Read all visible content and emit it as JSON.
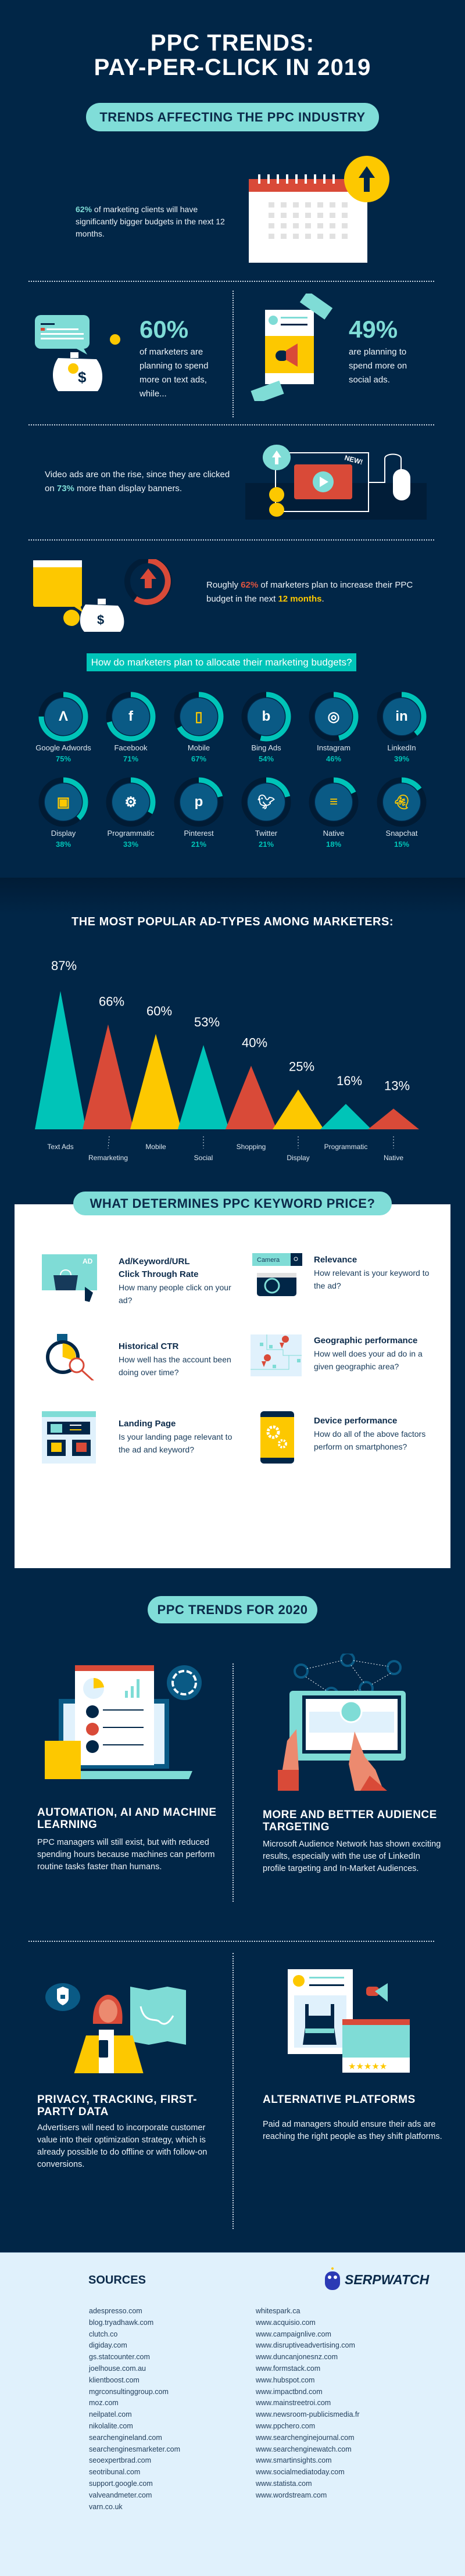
{
  "header": {
    "title_line1": "PPC TRENDS:",
    "title_line2": "PAY-PER-CLICK IN 2019"
  },
  "section1": {
    "pill": "TRENDS AFFECTING THE PPC INDUSTRY",
    "stat1": {
      "highlight": "62%",
      "text": " of marketing clients will have significantly bigger budgets in the next 12 months."
    },
    "stat2": {
      "value": "60%",
      "text": "of marketers are planning to spend more on text ads, while..."
    },
    "stat3": {
      "value": "49%",
      "text": "are planning to spend more on social ads."
    },
    "stat4": {
      "prefix": "Video ads are on the rise, since they are clicked on ",
      "highlight": "73%",
      "suffix": " more than display banners.",
      "badge": "NEW!"
    },
    "stat5": {
      "prefix": "Roughly ",
      "highlight": "62%",
      "middle": " of marketers plan to increase their PPC budget in the next ",
      "highlight2": "12 months",
      "suffix": "."
    }
  },
  "budgets": {
    "question": "How do marketers plan to allocate their marketing budgets?",
    "items": [
      {
        "label": "Google Adwords",
        "pct": "75%",
        "value": 75,
        "icon": "google-adwords-icon"
      },
      {
        "label": "Facebook",
        "pct": "71%",
        "value": 71,
        "icon": "facebook-icon"
      },
      {
        "label": "Mobile",
        "pct": "67%",
        "value": 67,
        "icon": "mobile-phone-icon"
      },
      {
        "label": "Bing Ads",
        "pct": "54%",
        "value": 54,
        "icon": "bing-icon"
      },
      {
        "label": "Instagram",
        "pct": "46%",
        "value": 46,
        "icon": "instagram-icon"
      },
      {
        "label": "LinkedIn",
        "pct": "39%",
        "value": 39,
        "icon": "linkedin-icon"
      },
      {
        "label": "Display",
        "pct": "38%",
        "value": 38,
        "icon": "display-icon"
      },
      {
        "label": "Programmatic",
        "pct": "33%",
        "value": 33,
        "icon": "gear-icon"
      },
      {
        "label": "Pinterest",
        "pct": "21%",
        "value": 21,
        "icon": "pinterest-icon"
      },
      {
        "label": "Twitter",
        "pct": "21%",
        "value": 21,
        "icon": "twitter-icon"
      },
      {
        "label": "Native",
        "pct": "18%",
        "value": 18,
        "icon": "native-ad-icon"
      },
      {
        "label": "Snapchat",
        "pct": "15%",
        "value": 15,
        "icon": "snapchat-icon"
      }
    ]
  },
  "chart_data": {
    "type": "bar",
    "title": "THE MOST POPULAR AD-TYPES AMONG MARKETERS:",
    "categories": [
      "Text Ads",
      "Remarketing",
      "Mobile",
      "Social",
      "Shopping",
      "Display",
      "Programmatic",
      "Native"
    ],
    "values": [
      87,
      66,
      60,
      53,
      40,
      25,
      16,
      13
    ],
    "labels": [
      "87%",
      "66%",
      "60%",
      "53%",
      "40%",
      "25%",
      "16%",
      "13%"
    ],
    "ylim": [
      0,
      87
    ],
    "grid": false,
    "colors": [
      "#00c4b8",
      "#d94a38",
      "#fdc800",
      "#00c4b8",
      "#d94a38",
      "#fdc800",
      "#00c4b8",
      "#d94a38"
    ]
  },
  "keyword": {
    "pill": "WHAT DETERMINES PPC KEYWORD PRICE?",
    "items": [
      {
        "title1": "Ad/Keyword/URL",
        "title2": "Click Through Rate",
        "desc": "How many people click on your ad?",
        "icon_text": "AD"
      },
      {
        "title1": "Relevance",
        "desc": "How relevant is your keyword to the ad?",
        "icon_text": "Camera"
      },
      {
        "title1": "Historical CTR",
        "desc": "How well has the account been doing over time?"
      },
      {
        "title1": "Geographic performance",
        "desc": "How well does your ad do in a given geographic area?"
      },
      {
        "title1": "Landing Page",
        "desc": "Is your landing page relevant to the ad and keyword?"
      },
      {
        "title1": "Device performance",
        "desc": "How do all of the above factors perform on smartphones?"
      }
    ]
  },
  "trends2020": {
    "pill": "PPC TRENDS FOR 2020",
    "items": [
      {
        "title": "AUTOMATION, AI AND MACHINE LEARNING",
        "desc": "PPC managers will still exist, but with reduced spending hours because machines can perform routine tasks faster than humans."
      },
      {
        "title": "MORE AND BETTER AUDIENCE TARGETING",
        "desc": "Microsoft Audience Network has shown exciting results, especially with the use of LinkedIn profile targeting and In-Market Audiences."
      },
      {
        "title": "PRIVACY, TRACKING, FIRST-PARTY DATA",
        "desc": "Advertisers will need to incorporate customer value into their optimization strategy, which is already possible to do offline or with follow-on conversions."
      },
      {
        "title": "ALTERNATIVE PLATFORMS",
        "desc": "Paid ad managers should ensure their ads are reaching the right people as they shift platforms."
      }
    ]
  },
  "sources": {
    "title": "SOURCES",
    "logo": "SERPWATCH",
    "left": [
      "adespresso.com",
      "blog.tryadhawk.com",
      "clutch.co",
      "digiday.com",
      "gs.statcounter.com",
      "joelhouse.com.au",
      "klientboost.com",
      "mgrconsultinggroup.com",
      "moz.com",
      "neilpatel.com",
      "nikolalite.com",
      "searchengineland.com",
      "searchenginesmarketer.com",
      "seoexpertbrad.com",
      "seotribunal.com",
      "support.google.com",
      "valveandmeter.com",
      "varn.co.uk"
    ],
    "right": [
      "whitespark.ca",
      "www.acquisio.com",
      "www.campaignlive.com",
      "www.disruptiveadvertising.com",
      "www.duncanjonesnz.com",
      "www.formstack.com",
      "www.hubspot.com",
      "www.impactbnd.com",
      "www.mainstreetroi.com",
      "www.newsroom-publicismedia.fr",
      "www.ppchero.com",
      "www.searchenginejournal.com",
      "www.searchenginewatch.com",
      "www.smartinsights.com",
      "www.socialmediatoday.com",
      "www.statista.com",
      "www.wordstream.com"
    ]
  },
  "colors": {
    "background": "#012647",
    "teal": "#00c4b8",
    "pill": "#80ddd8",
    "red": "#d94a38",
    "yellow": "#fdc800",
    "sources_bg": "#e0f1fc"
  }
}
